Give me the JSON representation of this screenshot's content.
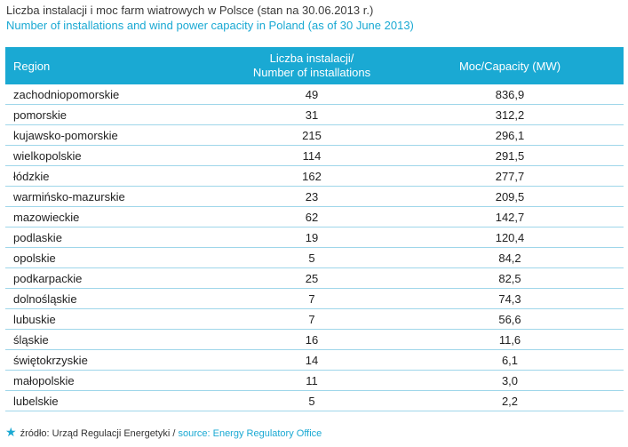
{
  "colors": {
    "accent": "#1aa9d3",
    "row_border": "#9fd6ea",
    "text": "#222222"
  },
  "title_pl": "Liczba instalacji i moc farm wiatrowych w Polsce (stan na 30.06.2013 r.)",
  "title_en": "Number of installations and wind power capacity in Poland (as of 30 June 2013)",
  "source_icon": "star-icon",
  "source_pl": "źródło: Urząd Regulacji Energetyki /",
  "source_en": "source: Energy Regulatory Office",
  "chart_data": {
    "type": "table",
    "columns": [
      "Region",
      "Liczba instalacji/\nNumber of installations",
      "Moc/Capacity (MW)"
    ],
    "rows": [
      [
        "zachodniopomorskie",
        "49",
        "836,9"
      ],
      [
        "pomorskie",
        "31",
        "312,2"
      ],
      [
        "kujawsko-pomorskie",
        "215",
        "296,1"
      ],
      [
        "wielkopolskie",
        "114",
        "291,5"
      ],
      [
        "łódzkie",
        "162",
        "277,7"
      ],
      [
        "warmińsko-mazurskie",
        "23",
        "209,5"
      ],
      [
        "mazowieckie",
        "62",
        "142,7"
      ],
      [
        "podlaskie",
        "19",
        "120,4"
      ],
      [
        "opolskie",
        "5",
        "84,2"
      ],
      [
        "podkarpackie",
        "25",
        "82,5"
      ],
      [
        "dolnośląskie",
        "7",
        "74,3"
      ],
      [
        "lubuskie",
        "7",
        "56,6"
      ],
      [
        "śląskie",
        "16",
        "11,6"
      ],
      [
        "świętokrzyskie",
        "14",
        "6,1"
      ],
      [
        "małopolskie",
        "11",
        "3,0"
      ],
      [
        "lubelskie",
        "5",
        "2,2"
      ]
    ]
  }
}
